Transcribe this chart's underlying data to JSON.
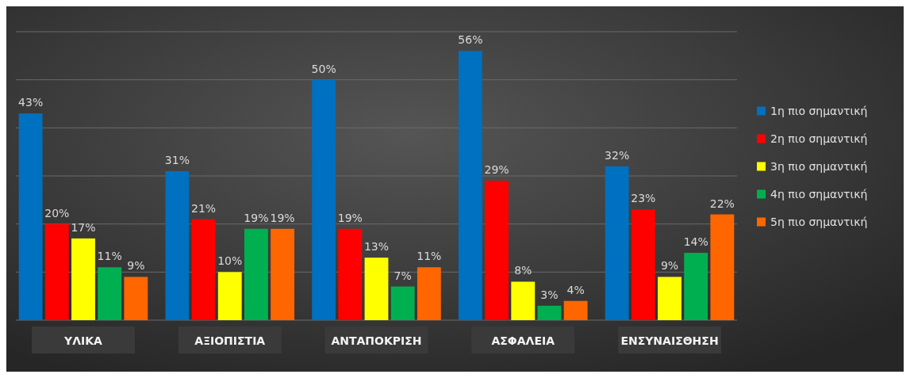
{
  "chart_data": {
    "type": "bar",
    "categories": [
      "ΥΛΙΚΑ",
      "ΑΞΙΟΠΙΣΤΙΑ",
      "ΑΝΤΑΠΟΚΡΙΣΗ",
      "ΑΣΦΑΛΕΙΑ",
      "ΕΝΣΥΝΑΙΣΘΗΣΗ"
    ],
    "series": [
      {
        "name": "1η πιο σημαντική",
        "color": "#0070c0",
        "values": [
          43,
          31,
          50,
          56,
          32
        ],
        "value_labels": [
          "43%",
          "31%",
          "50%",
          "56%",
          "32%"
        ]
      },
      {
        "name": "2η πιο σημαντική",
        "color": "#ff0000",
        "values": [
          20,
          21,
          19,
          29,
          23
        ],
        "value_labels": [
          "20%",
          "21%",
          "19%",
          "29%",
          "23%"
        ]
      },
      {
        "name": "3η πιο σημαντική",
        "color": "#ffff00",
        "values": [
          17,
          10,
          13,
          8,
          9
        ],
        "value_labels": [
          "17%",
          "10%",
          "13%",
          "8%",
          "9%"
        ]
      },
      {
        "name": "4η πιο σημαντική",
        "color": "#00b050",
        "values": [
          11,
          19,
          7,
          3,
          14
        ],
        "value_labels": [
          "11%",
          "19%",
          "7%",
          "3%",
          "14%"
        ]
      },
      {
        "name": "5η πιο σημαντική",
        "color": "#ff6600",
        "values": [
          9,
          19,
          11,
          4,
          22
        ],
        "value_labels": [
          "9%",
          "19%",
          "11%",
          "4%",
          "22%"
        ]
      }
    ],
    "ylim": [
      0,
      60
    ],
    "yticks": [
      {
        "value": 0,
        "label": null
      },
      {
        "value": 10,
        "label": null
      },
      {
        "value": 20,
        "label": null
      },
      {
        "value": 30,
        "label": null
      },
      {
        "value": 40,
        "label": null
      },
      {
        "value": 50,
        "label": null
      },
      {
        "value": 60,
        "label": null
      }
    ],
    "tick_labels": "x",
    "grid": "y",
    "legend": "right"
  }
}
